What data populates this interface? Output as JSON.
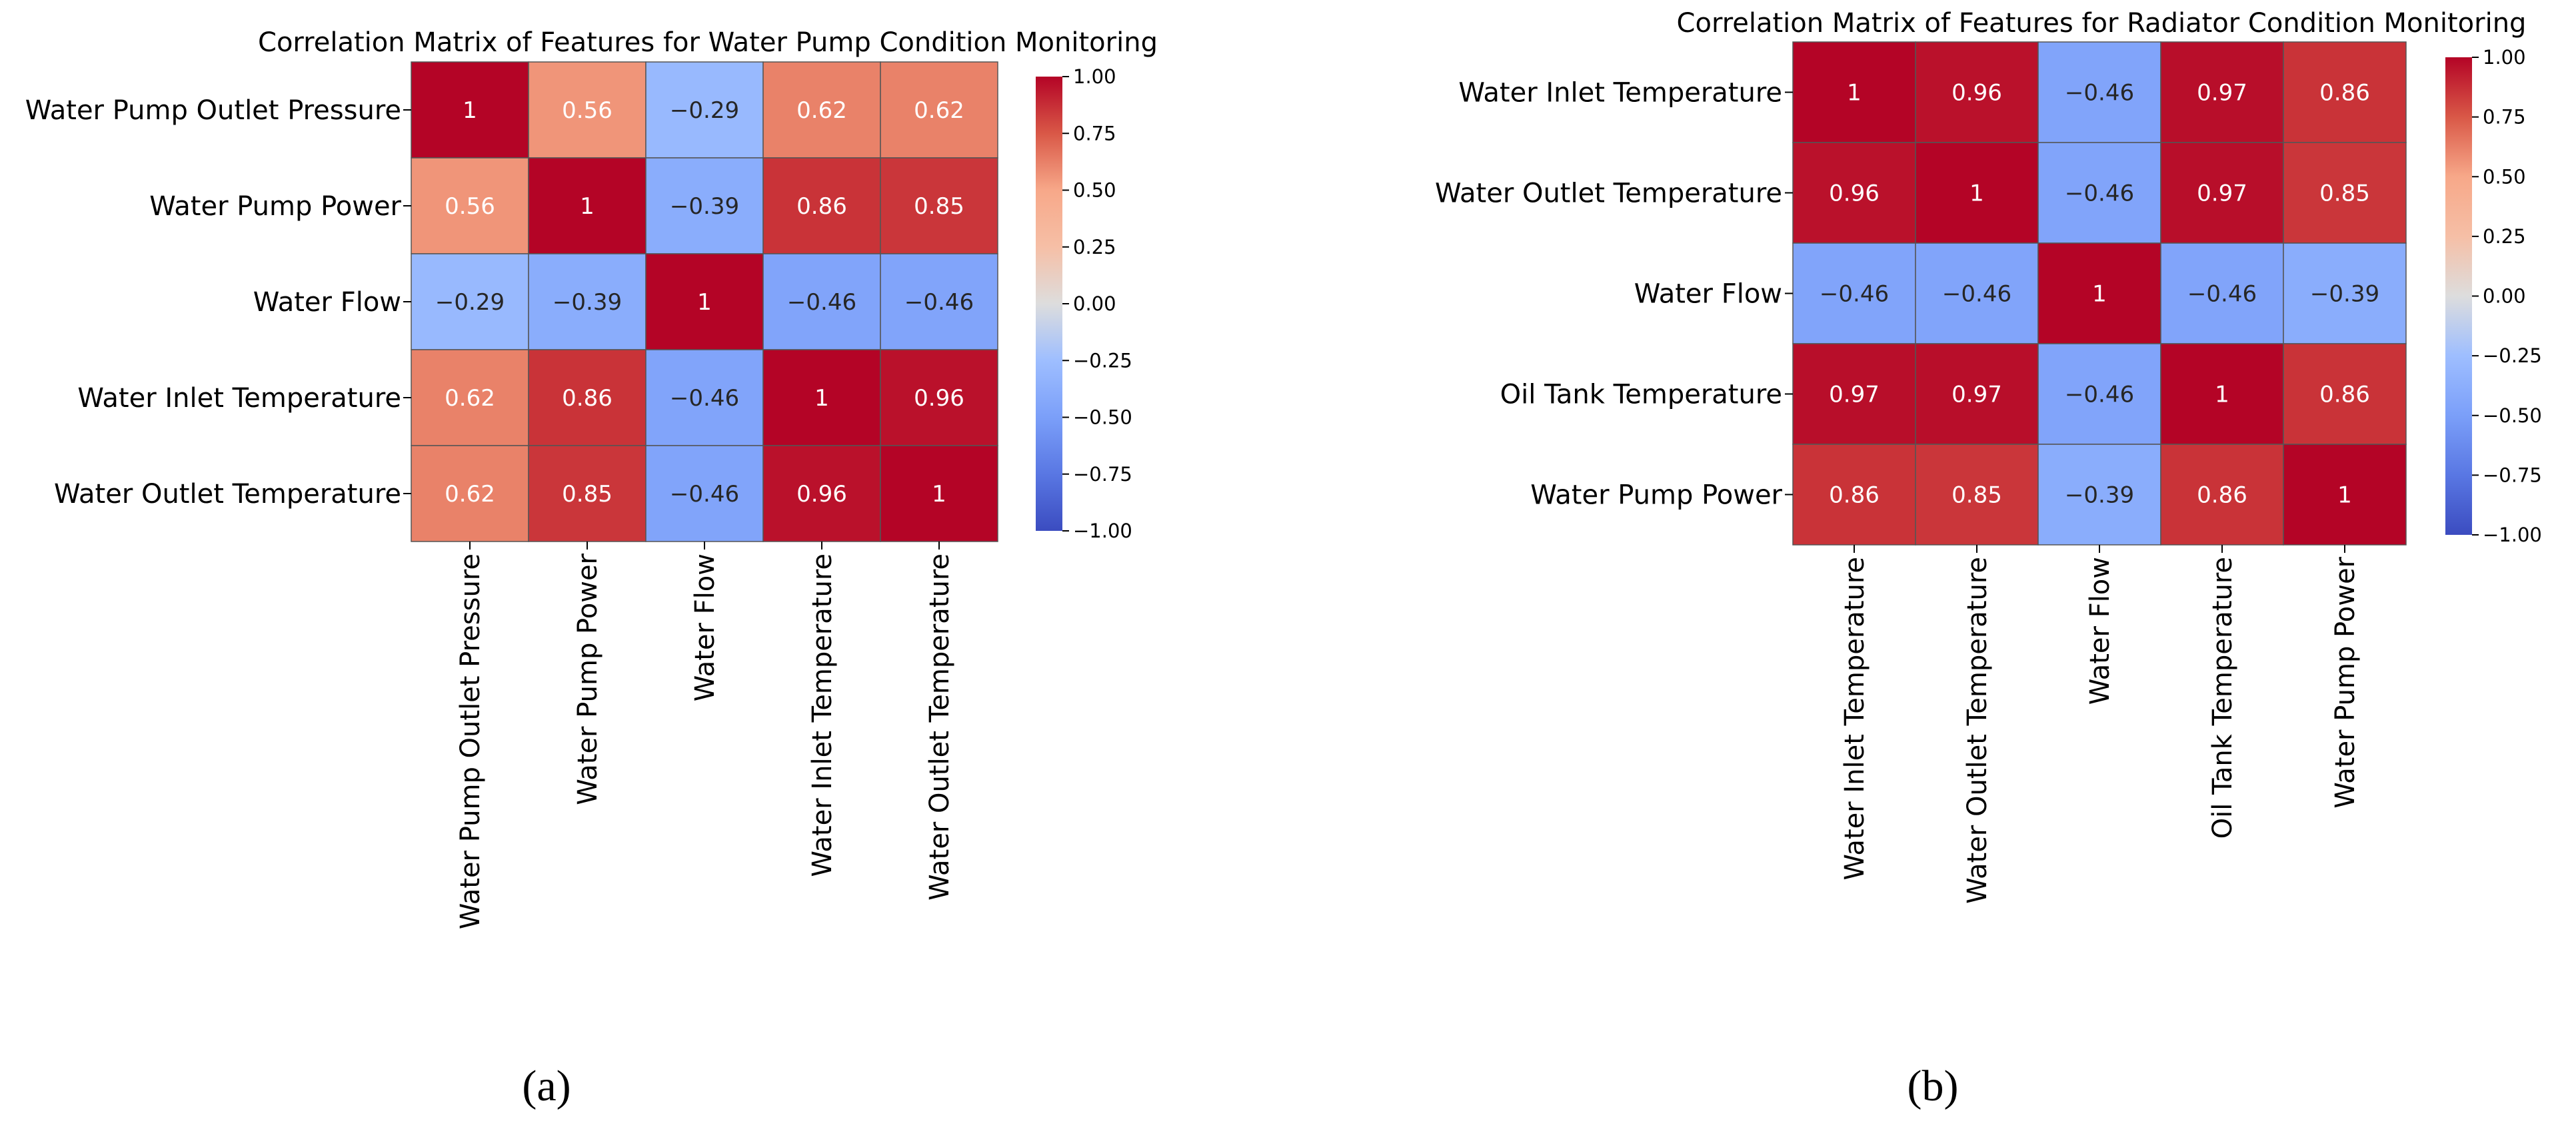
{
  "chart_data": [
    {
      "type": "heatmap",
      "title": "Correlation Matrix of Features for Water Pump Condition Monitoring",
      "panel_label": "(a)",
      "rows": [
        "Water Pump Outlet Pressure",
        "Water Pump Power",
        "Water Flow",
        "Water Inlet Temperature",
        "Water Outlet Temperature"
      ],
      "columns": [
        "Water Pump Outlet Pressure",
        "Water Pump Power",
        "Water Flow",
        "Water Inlet Temperature",
        "Water Outlet Temperature"
      ],
      "values": [
        [
          1,
          0.56,
          -0.29,
          0.62,
          0.62
        ],
        [
          0.56,
          1,
          -0.39,
          0.86,
          0.85
        ],
        [
          -0.29,
          -0.39,
          1,
          -0.46,
          -0.46
        ],
        [
          0.62,
          0.86,
          -0.46,
          1,
          0.96
        ],
        [
          0.62,
          0.85,
          -0.46,
          0.96,
          1
        ]
      ],
      "value_labels": [
        [
          "1",
          "0.56",
          "−0.29",
          "0.62",
          "0.62"
        ],
        [
          "0.56",
          "1",
          "−0.39",
          "0.86",
          "0.85"
        ],
        [
          "−0.29",
          "−0.39",
          "1",
          "−0.46",
          "−0.46"
        ],
        [
          "0.62",
          "0.86",
          "−0.46",
          "1",
          "0.96"
        ],
        [
          "0.62",
          "0.85",
          "−0.46",
          "0.96",
          "1"
        ]
      ],
      "colorbar": {
        "colormap": "coolwarm",
        "range": [
          -1,
          1
        ],
        "ticks": [
          1,
          0.75,
          0.5,
          0.25,
          0,
          -0.25,
          -0.5,
          -0.75,
          -1
        ],
        "tick_labels": [
          "1.00",
          "0.75",
          "0.50",
          "0.25",
          "0.00",
          "−0.25",
          "−0.50",
          "−0.75",
          "−1.00"
        ]
      }
    },
    {
      "type": "heatmap",
      "title": "Correlation Matrix of Features for Radiator Condition Monitoring",
      "panel_label": "(b)",
      "rows": [
        "Water Inlet Temperature",
        "Water Outlet Temperature",
        "Water Flow",
        "Oil Tank Temperature",
        "Water Pump Power"
      ],
      "columns": [
        "Water Inlet Temperature",
        "Water Outlet Temperature",
        "Water Flow",
        "Oil Tank Temperature",
        "Water Pump Power"
      ],
      "values": [
        [
          1,
          0.96,
          -0.46,
          0.97,
          0.86
        ],
        [
          0.96,
          1,
          -0.46,
          0.97,
          0.85
        ],
        [
          -0.46,
          -0.46,
          1,
          -0.46,
          -0.39
        ],
        [
          0.97,
          0.97,
          -0.46,
          1,
          0.86
        ],
        [
          0.86,
          0.85,
          -0.39,
          0.86,
          1
        ]
      ],
      "value_labels": [
        [
          "1",
          "0.96",
          "−0.46",
          "0.97",
          "0.86"
        ],
        [
          "0.96",
          "1",
          "−0.46",
          "0.97",
          "0.85"
        ],
        [
          "−0.46",
          "−0.46",
          "1",
          "−0.46",
          "−0.39"
        ],
        [
          "0.97",
          "0.97",
          "−0.46",
          "1",
          "0.86"
        ],
        [
          "0.86",
          "0.85",
          "−0.39",
          "0.86",
          "1"
        ]
      ],
      "colorbar": {
        "colormap": "coolwarm",
        "range": [
          -1,
          1
        ],
        "ticks": [
          1,
          0.75,
          0.5,
          0.25,
          0,
          -0.25,
          -0.5,
          -0.75,
          -1
        ],
        "tick_labels": [
          "1.00",
          "0.75",
          "0.50",
          "0.25",
          "0.00",
          "−0.25",
          "−0.50",
          "−0.75",
          "−1.00"
        ]
      }
    }
  ]
}
